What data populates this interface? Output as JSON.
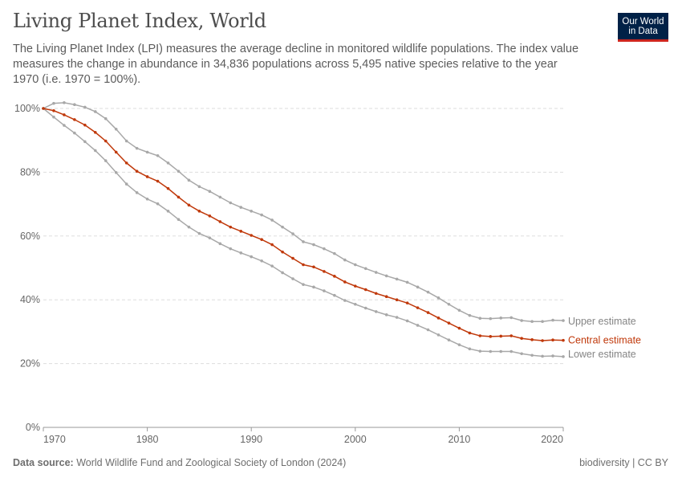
{
  "title": "Living Planet Index, World",
  "subtitle": "The Living Planet Index (LPI) measures the average decline in monitored wildlife populations. The index value measures the change in abundance in 34,836 populations across 5,495 native species relative to the year 1970 (i.e. 1970 = 100%).",
  "logo": {
    "line1": "Our World",
    "line2": "in Data"
  },
  "footer": {
    "source_label": "Data source:",
    "source": "World Wildlife Fund and Zoological Society of London (2024)",
    "license": "biodiversity | CC BY"
  },
  "colors": {
    "central": "#c0390b",
    "bounds": "#a8a8a8"
  },
  "chart_data": {
    "type": "line",
    "title": "Living Planet Index, World",
    "xlabel": "",
    "ylabel": "",
    "xlim": [
      1970,
      2020
    ],
    "ylim": [
      0,
      100
    ],
    "x_ticks": [
      "1970",
      "1980",
      "1990",
      "2000",
      "2010",
      "2020"
    ],
    "y_ticks": [
      "0%",
      "20%",
      "40%",
      "60%",
      "80%",
      "100%"
    ],
    "grid": true,
    "legend_placement": "right-inline-labels",
    "x_start": 1970,
    "series": [
      {
        "name": "Upper estimate",
        "values": [
          100,
          101.6,
          101.8,
          101.2,
          100.4,
          99,
          96.8,
          93.5,
          89.8,
          87.5,
          86.3,
          85.2,
          82.9,
          80.3,
          77.5,
          75.5,
          74,
          72.2,
          70.4,
          69,
          67.8,
          66.6,
          65,
          62.8,
          60.7,
          58.2,
          57.3,
          56,
          54.5,
          52.5,
          51,
          49.8,
          48.6,
          47.5,
          46.5,
          45.5,
          44,
          42.4,
          40.6,
          38.6,
          36.7,
          35.1,
          34.2,
          34.1,
          34.3,
          34.4,
          33.5,
          33.2,
          33.2,
          33.6,
          33.5
        ]
      },
      {
        "name": "Central estimate",
        "values": [
          100,
          99.3,
          98,
          96.5,
          94.8,
          92.5,
          89.8,
          86.3,
          82.9,
          80.3,
          78.6,
          77.2,
          74.9,
          72.2,
          69.7,
          67.8,
          66.3,
          64.5,
          62.8,
          61.5,
          60.2,
          58.9,
          57.3,
          55,
          53,
          51,
          50.3,
          48.9,
          47.4,
          45.6,
          44.3,
          43.2,
          42,
          41,
          40,
          39,
          37.5,
          36,
          34.3,
          32.7,
          31.1,
          29.6,
          28.7,
          28.5,
          28.6,
          28.7,
          27.9,
          27.5,
          27.2,
          27.4,
          27.3
        ]
      },
      {
        "name": "Lower estimate",
        "values": [
          100,
          97.3,
          94.7,
          92.3,
          89.6,
          86.8,
          83.6,
          79.9,
          76.3,
          73.6,
          71.6,
          70.1,
          67.8,
          65.2,
          62.8,
          60.8,
          59.4,
          57.6,
          56,
          54.7,
          53.5,
          52.2,
          50.6,
          48.5,
          46.6,
          44.8,
          44,
          42.8,
          41.4,
          39.8,
          38.6,
          37.4,
          36.3,
          35.3,
          34.5,
          33.4,
          32,
          30.6,
          29,
          27.4,
          25.9,
          24.6,
          23.9,
          23.8,
          23.8,
          23.8,
          23.1,
          22.6,
          22.3,
          22.4,
          22.2
        ]
      }
    ]
  }
}
